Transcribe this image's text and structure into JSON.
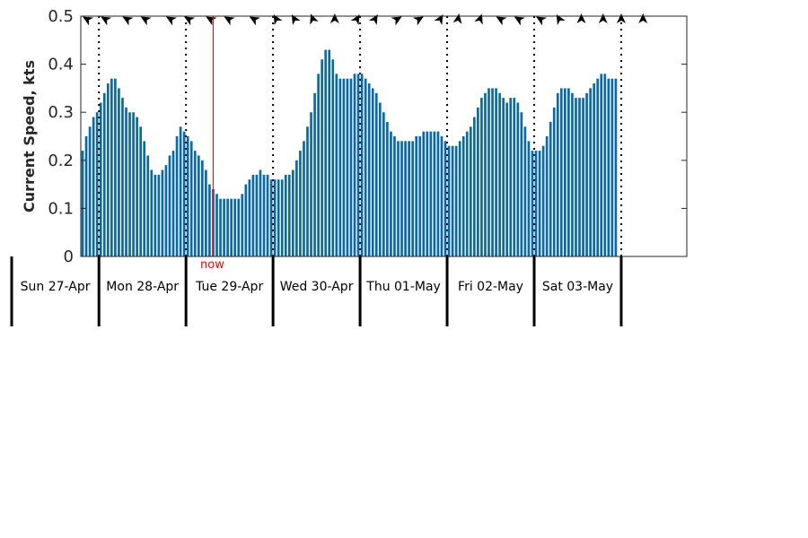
{
  "chart_data": {
    "type": "bar",
    "title": "",
    "ylabel": "Current Speed, kts",
    "ylim": [
      0,
      0.5
    ],
    "yticks": [
      "0",
      "0.1",
      "0.2",
      "0.3",
      "0.4",
      "0.5"
    ],
    "hours_per_bar": 1,
    "start_offset_hours": 0,
    "day_labels": [
      "Sun 27-Apr",
      "Mon 28-Apr",
      "Tue 29-Apr",
      "Wed 30-Apr",
      "Thu 01-May",
      "Fri 02-May",
      "Sat 03-May"
    ],
    "now_label": "now",
    "now_hour": 36,
    "grid": false,
    "colors": {
      "bar": "#0b6aa6",
      "now": "#ff0000",
      "axis": "#262626"
    },
    "values": [
      0.22,
      0.25,
      0.27,
      0.29,
      0.3,
      0.32,
      0.34,
      0.36,
      0.37,
      0.37,
      0.35,
      0.33,
      0.31,
      0.3,
      0.3,
      0.29,
      0.27,
      0.24,
      0.21,
      0.18,
      0.17,
      0.17,
      0.18,
      0.19,
      0.21,
      0.22,
      0.25,
      0.27,
      0.26,
      0.25,
      0.24,
      0.22,
      0.21,
      0.2,
      0.18,
      0.15,
      0.14,
      0.13,
      0.12,
      0.12,
      0.12,
      0.12,
      0.12,
      0.12,
      0.13,
      0.15,
      0.16,
      0.17,
      0.17,
      0.18,
      0.17,
      0.17,
      0.16,
      0.16,
      0.16,
      0.16,
      0.17,
      0.17,
      0.18,
      0.2,
      0.22,
      0.24,
      0.27,
      0.3,
      0.34,
      0.38,
      0.41,
      0.43,
      0.43,
      0.41,
      0.38,
      0.37,
      0.37,
      0.37,
      0.37,
      0.38,
      0.38,
      0.38,
      0.37,
      0.36,
      0.35,
      0.34,
      0.32,
      0.3,
      0.28,
      0.26,
      0.25,
      0.24,
      0.24,
      0.24,
      0.24,
      0.24,
      0.25,
      0.25,
      0.26,
      0.26,
      0.26,
      0.26,
      0.26,
      0.25,
      0.24,
      0.23,
      0.23,
      0.23,
      0.24,
      0.25,
      0.26,
      0.27,
      0.29,
      0.31,
      0.33,
      0.34,
      0.35,
      0.35,
      0.35,
      0.34,
      0.33,
      0.32,
      0.33,
      0.33,
      0.32,
      0.3,
      0.27,
      0.24,
      0.22,
      0.22,
      0.22,
      0.23,
      0.25,
      0.28,
      0.31,
      0.34,
      0.35,
      0.35,
      0.35,
      0.34,
      0.33,
      0.33,
      0.33,
      0.34,
      0.35,
      0.36,
      0.37,
      0.38,
      0.38,
      0.37,
      0.37,
      0.37
    ],
    "direction_arrows": [
      {
        "hour": 2,
        "bearing_deg": 300
      },
      {
        "hour": 7,
        "bearing_deg": 300
      },
      {
        "hour": 13,
        "bearing_deg": 300
      },
      {
        "hour": 18,
        "bearing_deg": 300
      },
      {
        "hour": 25,
        "bearing_deg": 300
      },
      {
        "hour": 30,
        "bearing_deg": 300
      },
      {
        "hour": 36,
        "bearing_deg": 300
      },
      {
        "hour": 41,
        "bearing_deg": 300
      },
      {
        "hour": 48,
        "bearing_deg": 300
      },
      {
        "hour": 54,
        "bearing_deg": 330
      },
      {
        "hour": 59,
        "bearing_deg": 330
      },
      {
        "hour": 64,
        "bearing_deg": 340
      },
      {
        "hour": 70,
        "bearing_deg": 0
      },
      {
        "hour": 76,
        "bearing_deg": 30
      },
      {
        "hour": 81,
        "bearing_deg": 30
      },
      {
        "hour": 87,
        "bearing_deg": 60
      },
      {
        "hour": 93,
        "bearing_deg": 60
      },
      {
        "hour": 99,
        "bearing_deg": 30
      },
      {
        "hour": 104,
        "bearing_deg": 10
      },
      {
        "hour": 110,
        "bearing_deg": 20
      },
      {
        "hour": 116,
        "bearing_deg": 300
      },
      {
        "hour": 121,
        "bearing_deg": 300
      },
      {
        "hour": 127,
        "bearing_deg": 300
      },
      {
        "hour": 132,
        "bearing_deg": 330
      },
      {
        "hour": 138,
        "bearing_deg": 0
      },
      {
        "hour": 144,
        "bearing_deg": 0
      },
      {
        "hour": 149,
        "bearing_deg": 0
      },
      {
        "hour": 155,
        "bearing_deg": 0
      }
    ]
  }
}
